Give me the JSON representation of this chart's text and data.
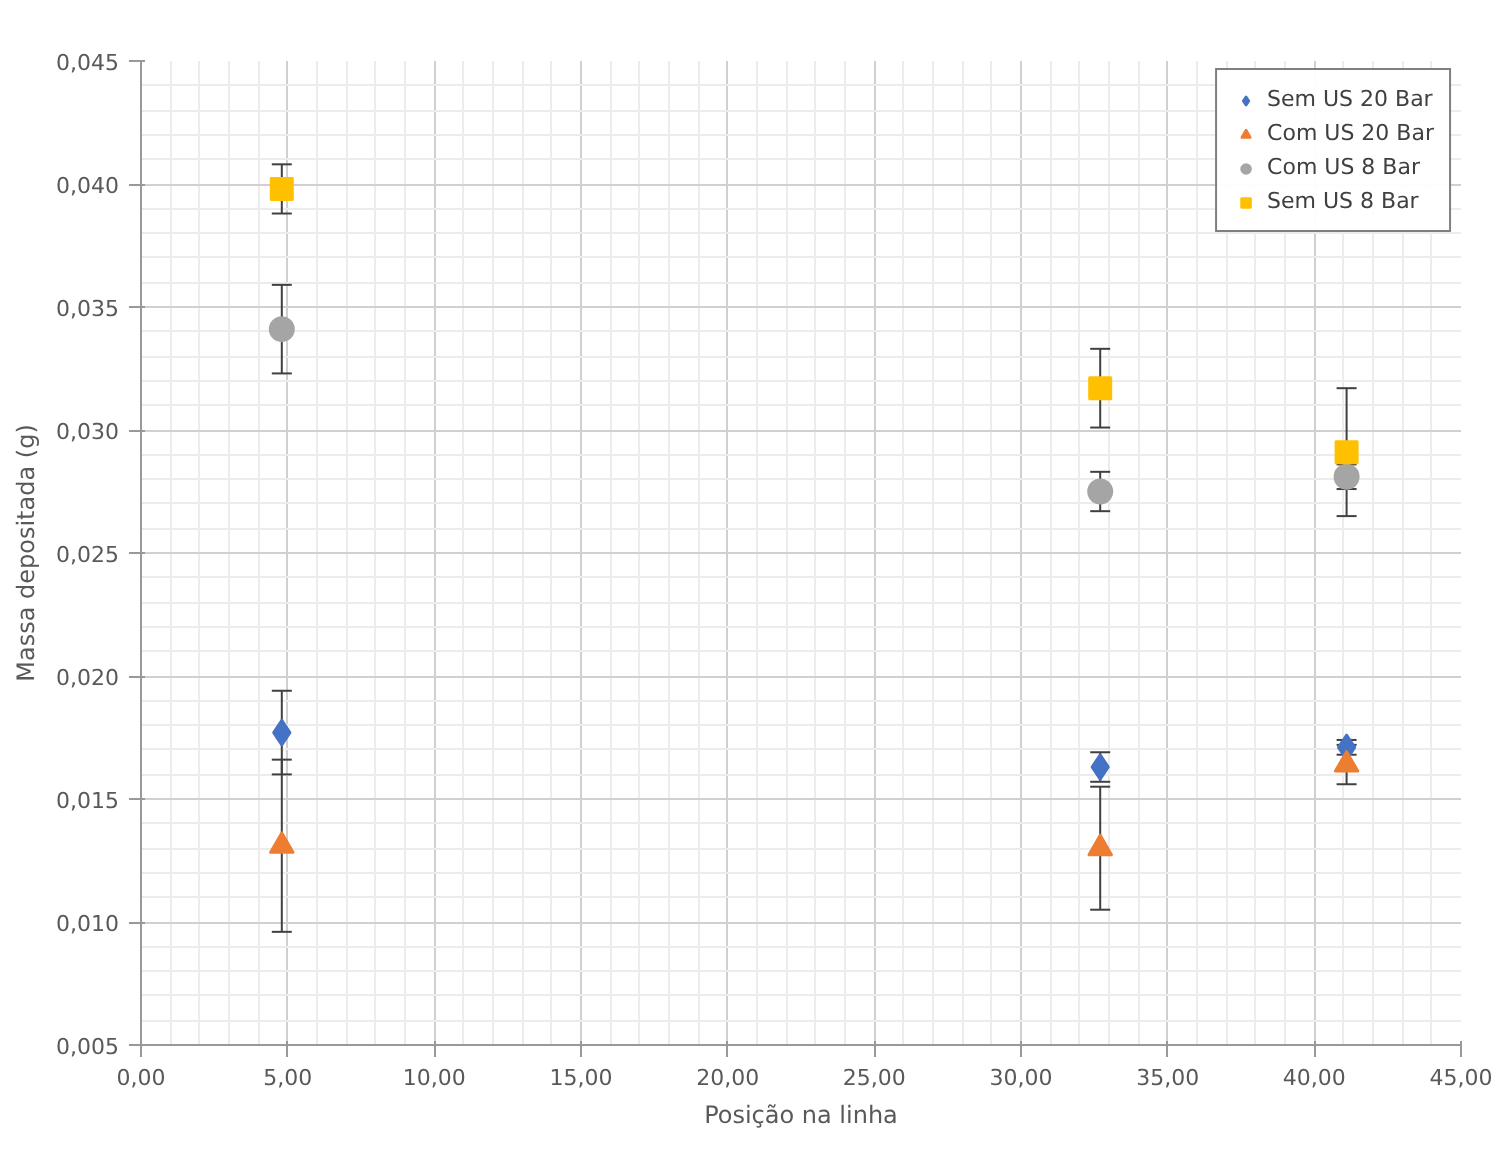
{
  "chart_data": {
    "type": "scatter",
    "xlabel": "Posição na linha",
    "ylabel": "Massa depositada (g)",
    "xlim": [
      0,
      45
    ],
    "ylim": [
      0.005,
      0.045
    ],
    "xticks": [
      {
        "value": 0,
        "label": "0,00"
      },
      {
        "value": 5,
        "label": "5,00"
      },
      {
        "value": 10,
        "label": "10,00"
      },
      {
        "value": 15,
        "label": "15,00"
      },
      {
        "value": 20,
        "label": "20,00"
      },
      {
        "value": 25,
        "label": "25,00"
      },
      {
        "value": 30,
        "label": "30,00"
      },
      {
        "value": 35,
        "label": "35,00"
      },
      {
        "value": 40,
        "label": "40,00"
      },
      {
        "value": 45,
        "label": "45,00"
      }
    ],
    "yticks": [
      {
        "value": 0.005,
        "label": "0,005"
      },
      {
        "value": 0.01,
        "label": "0,010"
      },
      {
        "value": 0.015,
        "label": "0,015"
      },
      {
        "value": 0.02,
        "label": "0,020"
      },
      {
        "value": 0.025,
        "label": "0,025"
      },
      {
        "value": 0.03,
        "label": "0,030"
      },
      {
        "value": 0.035,
        "label": "0,035"
      },
      {
        "value": 0.04,
        "label": "0,040"
      },
      {
        "value": 0.045,
        "label": "0,045"
      }
    ],
    "grid": true,
    "legend": "top right",
    "x": [
      4.8,
      32.7,
      41.1
    ],
    "series": [
      {
        "name": "Sem US 20 Bar",
        "color": "#4472c4",
        "marker": "diamond",
        "values": [
          0.0177,
          0.0163,
          0.0171
        ],
        "errors": [
          0.0017,
          0.0006,
          0.0003
        ]
      },
      {
        "name": "Com US 20 Bar",
        "color": "#ed7d31",
        "marker": "triangle",
        "values": [
          0.0131,
          0.013,
          0.0164
        ],
        "errors": [
          0.0035,
          0.0025,
          0.0008
        ]
      },
      {
        "name": "Com US 8 Bar",
        "color": "#a5a5a5",
        "marker": "circle",
        "values": [
          0.0341,
          0.0275,
          0.0281
        ],
        "errors": [
          0.0018,
          0.0008,
          0.0005
        ]
      },
      {
        "name": "Sem US 8 Bar",
        "color": "#ffc000",
        "marker": "square",
        "values": [
          0.0398,
          0.0317,
          0.0291
        ],
        "errors": [
          0.001,
          0.0016,
          0.0026
        ]
      }
    ]
  }
}
